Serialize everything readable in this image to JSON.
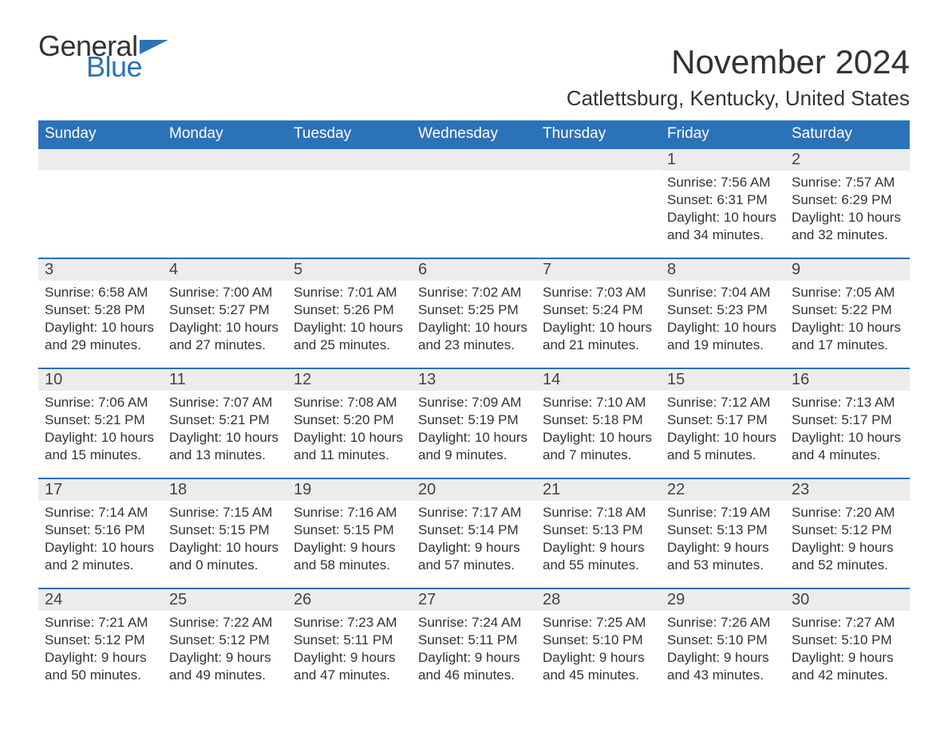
{
  "logo": {
    "text_general": "General",
    "text_blue": "Blue",
    "flag_color": "#2c72b8"
  },
  "title": "November 2024",
  "location": "Catlettsburg, Kentucky, United States",
  "header_bg": "#2c72b8",
  "header_fg": "#ffffff",
  "daynum_bg": "#ececec",
  "row_border": "#2c72b8",
  "text_color": "#333333",
  "weekdays": [
    "Sunday",
    "Monday",
    "Tuesday",
    "Wednesday",
    "Thursday",
    "Friday",
    "Saturday"
  ],
  "weeks": [
    [
      null,
      null,
      null,
      null,
      null,
      {
        "n": "1",
        "sunrise": "Sunrise: 7:56 AM",
        "sunset": "Sunset: 6:31 PM",
        "daylight1": "Daylight: 10 hours",
        "daylight2": "and 34 minutes."
      },
      {
        "n": "2",
        "sunrise": "Sunrise: 7:57 AM",
        "sunset": "Sunset: 6:29 PM",
        "daylight1": "Daylight: 10 hours",
        "daylight2": "and 32 minutes."
      }
    ],
    [
      {
        "n": "3",
        "sunrise": "Sunrise: 6:58 AM",
        "sunset": "Sunset: 5:28 PM",
        "daylight1": "Daylight: 10 hours",
        "daylight2": "and 29 minutes."
      },
      {
        "n": "4",
        "sunrise": "Sunrise: 7:00 AM",
        "sunset": "Sunset: 5:27 PM",
        "daylight1": "Daylight: 10 hours",
        "daylight2": "and 27 minutes."
      },
      {
        "n": "5",
        "sunrise": "Sunrise: 7:01 AM",
        "sunset": "Sunset: 5:26 PM",
        "daylight1": "Daylight: 10 hours",
        "daylight2": "and 25 minutes."
      },
      {
        "n": "6",
        "sunrise": "Sunrise: 7:02 AM",
        "sunset": "Sunset: 5:25 PM",
        "daylight1": "Daylight: 10 hours",
        "daylight2": "and 23 minutes."
      },
      {
        "n": "7",
        "sunrise": "Sunrise: 7:03 AM",
        "sunset": "Sunset: 5:24 PM",
        "daylight1": "Daylight: 10 hours",
        "daylight2": "and 21 minutes."
      },
      {
        "n": "8",
        "sunrise": "Sunrise: 7:04 AM",
        "sunset": "Sunset: 5:23 PM",
        "daylight1": "Daylight: 10 hours",
        "daylight2": "and 19 minutes."
      },
      {
        "n": "9",
        "sunrise": "Sunrise: 7:05 AM",
        "sunset": "Sunset: 5:22 PM",
        "daylight1": "Daylight: 10 hours",
        "daylight2": "and 17 minutes."
      }
    ],
    [
      {
        "n": "10",
        "sunrise": "Sunrise: 7:06 AM",
        "sunset": "Sunset: 5:21 PM",
        "daylight1": "Daylight: 10 hours",
        "daylight2": "and 15 minutes."
      },
      {
        "n": "11",
        "sunrise": "Sunrise: 7:07 AM",
        "sunset": "Sunset: 5:21 PM",
        "daylight1": "Daylight: 10 hours",
        "daylight2": "and 13 minutes."
      },
      {
        "n": "12",
        "sunrise": "Sunrise: 7:08 AM",
        "sunset": "Sunset: 5:20 PM",
        "daylight1": "Daylight: 10 hours",
        "daylight2": "and 11 minutes."
      },
      {
        "n": "13",
        "sunrise": "Sunrise: 7:09 AM",
        "sunset": "Sunset: 5:19 PM",
        "daylight1": "Daylight: 10 hours",
        "daylight2": "and 9 minutes."
      },
      {
        "n": "14",
        "sunrise": "Sunrise: 7:10 AM",
        "sunset": "Sunset: 5:18 PM",
        "daylight1": "Daylight: 10 hours",
        "daylight2": "and 7 minutes."
      },
      {
        "n": "15",
        "sunrise": "Sunrise: 7:12 AM",
        "sunset": "Sunset: 5:17 PM",
        "daylight1": "Daylight: 10 hours",
        "daylight2": "and 5 minutes."
      },
      {
        "n": "16",
        "sunrise": "Sunrise: 7:13 AM",
        "sunset": "Sunset: 5:17 PM",
        "daylight1": "Daylight: 10 hours",
        "daylight2": "and 4 minutes."
      }
    ],
    [
      {
        "n": "17",
        "sunrise": "Sunrise: 7:14 AM",
        "sunset": "Sunset: 5:16 PM",
        "daylight1": "Daylight: 10 hours",
        "daylight2": "and 2 minutes."
      },
      {
        "n": "18",
        "sunrise": "Sunrise: 7:15 AM",
        "sunset": "Sunset: 5:15 PM",
        "daylight1": "Daylight: 10 hours",
        "daylight2": "and 0 minutes."
      },
      {
        "n": "19",
        "sunrise": "Sunrise: 7:16 AM",
        "sunset": "Sunset: 5:15 PM",
        "daylight1": "Daylight: 9 hours",
        "daylight2": "and 58 minutes."
      },
      {
        "n": "20",
        "sunrise": "Sunrise: 7:17 AM",
        "sunset": "Sunset: 5:14 PM",
        "daylight1": "Daylight: 9 hours",
        "daylight2": "and 57 minutes."
      },
      {
        "n": "21",
        "sunrise": "Sunrise: 7:18 AM",
        "sunset": "Sunset: 5:13 PM",
        "daylight1": "Daylight: 9 hours",
        "daylight2": "and 55 minutes."
      },
      {
        "n": "22",
        "sunrise": "Sunrise: 7:19 AM",
        "sunset": "Sunset: 5:13 PM",
        "daylight1": "Daylight: 9 hours",
        "daylight2": "and 53 minutes."
      },
      {
        "n": "23",
        "sunrise": "Sunrise: 7:20 AM",
        "sunset": "Sunset: 5:12 PM",
        "daylight1": "Daylight: 9 hours",
        "daylight2": "and 52 minutes."
      }
    ],
    [
      {
        "n": "24",
        "sunrise": "Sunrise: 7:21 AM",
        "sunset": "Sunset: 5:12 PM",
        "daylight1": "Daylight: 9 hours",
        "daylight2": "and 50 minutes."
      },
      {
        "n": "25",
        "sunrise": "Sunrise: 7:22 AM",
        "sunset": "Sunset: 5:12 PM",
        "daylight1": "Daylight: 9 hours",
        "daylight2": "and 49 minutes."
      },
      {
        "n": "26",
        "sunrise": "Sunrise: 7:23 AM",
        "sunset": "Sunset: 5:11 PM",
        "daylight1": "Daylight: 9 hours",
        "daylight2": "and 47 minutes."
      },
      {
        "n": "27",
        "sunrise": "Sunrise: 7:24 AM",
        "sunset": "Sunset: 5:11 PM",
        "daylight1": "Daylight: 9 hours",
        "daylight2": "and 46 minutes."
      },
      {
        "n": "28",
        "sunrise": "Sunrise: 7:25 AM",
        "sunset": "Sunset: 5:10 PM",
        "daylight1": "Daylight: 9 hours",
        "daylight2": "and 45 minutes."
      },
      {
        "n": "29",
        "sunrise": "Sunrise: 7:26 AM",
        "sunset": "Sunset: 5:10 PM",
        "daylight1": "Daylight: 9 hours",
        "daylight2": "and 43 minutes."
      },
      {
        "n": "30",
        "sunrise": "Sunrise: 7:27 AM",
        "sunset": "Sunset: 5:10 PM",
        "daylight1": "Daylight: 9 hours",
        "daylight2": "and 42 minutes."
      }
    ]
  ]
}
